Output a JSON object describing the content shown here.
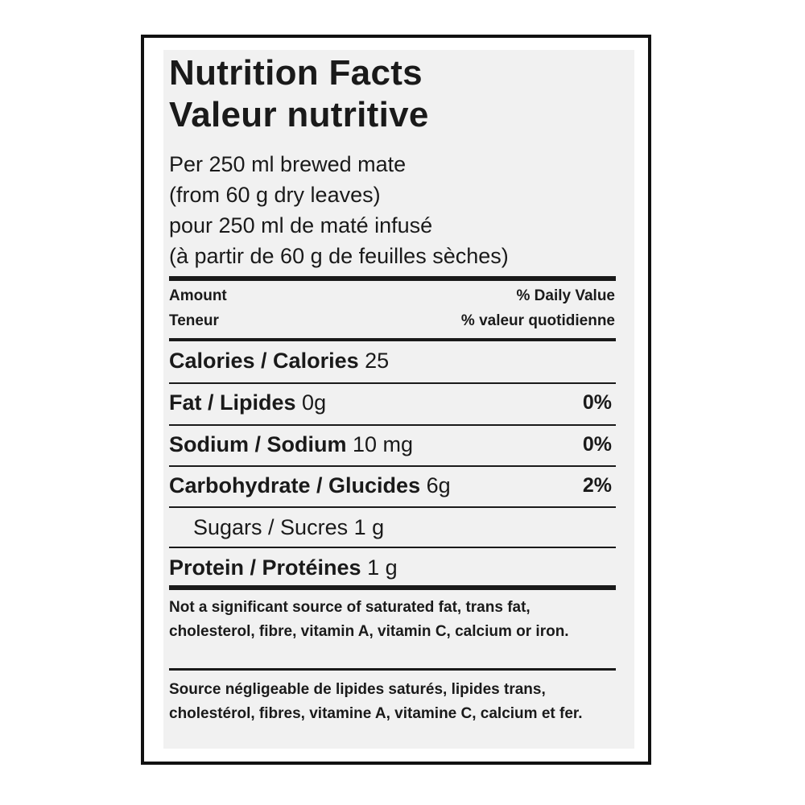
{
  "title_en": "Nutrition Facts",
  "title_fr": "Valeur nutritive",
  "serving": [
    "Per 250 ml brewed mate",
    "(from 60 g dry leaves)",
    "pour 250 ml de maté infusé",
    "(à partir de 60 g de feuilles sèches)"
  ],
  "header": {
    "amount_en": "Amount",
    "amount_fr": "Teneur",
    "dv_en": "% Daily Value",
    "dv_fr": "% valeur quotidienne"
  },
  "nutrients": [
    {
      "label": "Calories / Calories",
      "amount": "25",
      "dv": ""
    },
    {
      "label": "Fat / Lipides",
      "amount": "0g",
      "dv": "0%"
    },
    {
      "label": "Sodium / Sodium",
      "amount": "10 mg",
      "dv": "0%"
    },
    {
      "label": "Carbohydrate / Glucides",
      "amount": "6g",
      "dv": "2%"
    },
    {
      "label": "Sugars / Sucres",
      "amount": "1 g",
      "dv": ""
    },
    {
      "label": "Protein / Protéines",
      "amount": "1 g",
      "dv": ""
    }
  ],
  "footnote_en": "Not a significant source of saturated fat, trans fat, cholesterol, fibre, vitamin A, vitamin C, calcium or iron.",
  "footnote_fr": "Source négligeable de lipides saturés, lipides trans, cholestérol, fibres, vitamine A, vitamine C, calcium et fer."
}
